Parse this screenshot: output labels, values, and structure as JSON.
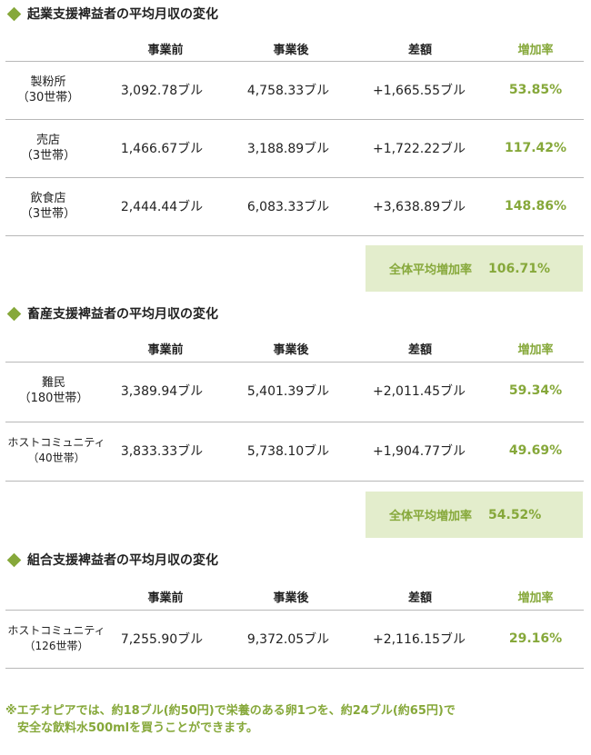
{
  "colors": {
    "accent": "#86a83a",
    "summary_bg": "#e3edcc",
    "rule": "#b8b8b8"
  },
  "icons": {
    "bullet": "diamond-bullet-icon"
  },
  "headers": {
    "before": "事業前",
    "after": "事業後",
    "diff": "差額",
    "rate": "増加率"
  },
  "sections": [
    {
      "title": "起業支援裨益者の平均月収の変化",
      "rows": [
        {
          "label1": "製粉所",
          "label2": "（30世帯）",
          "before": "3,092.78ブル",
          "after": "4,758.33ブル",
          "diff": "+1,665.55ブル",
          "rate": "53.85%"
        },
        {
          "label1": "売店",
          "label2": "（3世帯）",
          "before": "1,466.67ブル",
          "after": "3,188.89ブル",
          "diff": "+1,722.22ブル",
          "rate": "117.42%"
        },
        {
          "label1": "飲食店",
          "label2": "（3世帯）",
          "before": "2,444.44ブル",
          "after": "6,083.33ブル",
          "diff": "+3,638.89ブル",
          "rate": "148.86%"
        }
      ],
      "summary": {
        "label": "全体平均増加率",
        "value": "106.71%"
      }
    },
    {
      "title": "畜産支援裨益者の平均月収の変化",
      "rows": [
        {
          "label1": "難民",
          "label2": "（180世帯）",
          "before": "3,389.94ブル",
          "after": "5,401.39ブル",
          "diff": "+2,011.45ブル",
          "rate": "59.34%"
        },
        {
          "label1": "ホストコミュニティ",
          "label2": "（40世帯）",
          "before": "3,833.33ブル",
          "after": "5,738.10ブル",
          "diff": "+1,904.77ブル",
          "rate": "49.69%"
        }
      ],
      "summary": {
        "label": "全体平均増加率",
        "value": "54.52%"
      }
    },
    {
      "title": "組合支援裨益者の平均月収の変化",
      "rows": [
        {
          "label1": "ホストコミュニティ",
          "label2": "（126世帯）",
          "before": "7,255.90ブル",
          "after": "9,372.05ブル",
          "diff": "+2,116.15ブル",
          "rate": "29.16%"
        }
      ]
    }
  ],
  "note": {
    "line1": "※エチオピアでは、約18ブル(約50円)で栄養のある卵1つを、約24ブル(約65円)で",
    "line2": "　安全な飲料水500mlを買うことができます。"
  }
}
